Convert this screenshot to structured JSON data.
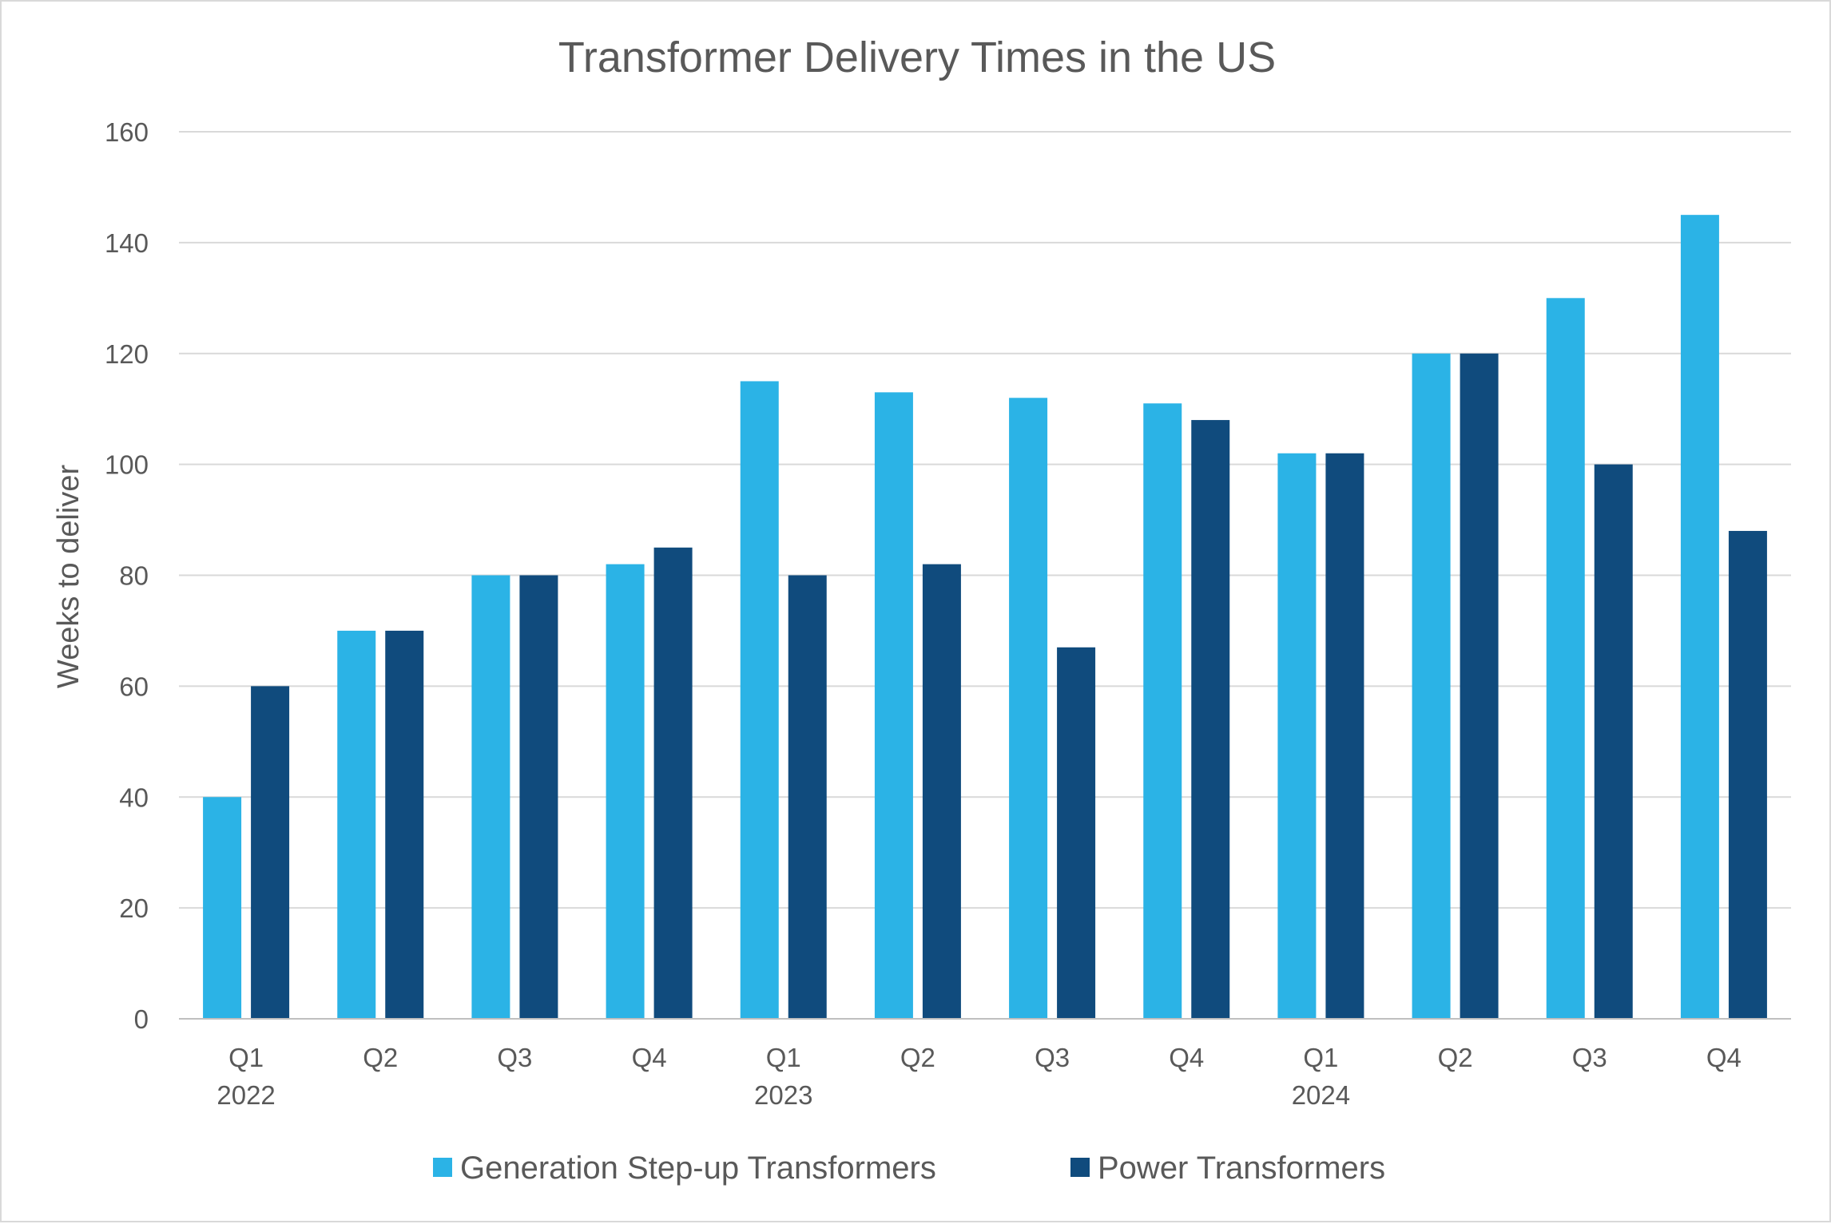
{
  "chart_data": {
    "type": "bar",
    "title": "Transformer Delivery Times in the US",
    "xlabel": "",
    "ylabel": "Weeks to deliver",
    "ylim": [
      0,
      160
    ],
    "yticks": [
      0,
      20,
      40,
      60,
      80,
      100,
      120,
      140,
      160
    ],
    "grid": true,
    "legend_position": "bottom",
    "categories": [
      "Q1 2022",
      "Q2 2022",
      "Q3 2022",
      "Q4 2022",
      "Q1 2023",
      "Q2 2023",
      "Q3 2023",
      "Q4 2023",
      "Q1 2024",
      "Q2 2024",
      "Q3 2024",
      "Q4 2024"
    ],
    "category_labels": [
      {
        "quarter": "Q1",
        "year": "2022"
      },
      {
        "quarter": "Q2",
        "year": ""
      },
      {
        "quarter": "Q3",
        "year": ""
      },
      {
        "quarter": "Q4",
        "year": ""
      },
      {
        "quarter": "Q1",
        "year": "2023"
      },
      {
        "quarter": "Q2",
        "year": ""
      },
      {
        "quarter": "Q3",
        "year": ""
      },
      {
        "quarter": "Q4",
        "year": ""
      },
      {
        "quarter": "Q1",
        "year": "2024"
      },
      {
        "quarter": "Q2",
        "year": ""
      },
      {
        "quarter": "Q3",
        "year": ""
      },
      {
        "quarter": "Q4",
        "year": ""
      }
    ],
    "series": [
      {
        "name": "Generation Step-up Transformers",
        "color": "#2bb3e6",
        "values": [
          40,
          70,
          80,
          82,
          115,
          113,
          112,
          111,
          102,
          120,
          130,
          145
        ]
      },
      {
        "name": "Power Transformers",
        "color": "#104b7d",
        "values": [
          60,
          70,
          80,
          85,
          80,
          82,
          67,
          108,
          102,
          120,
          100,
          88
        ]
      }
    ]
  }
}
